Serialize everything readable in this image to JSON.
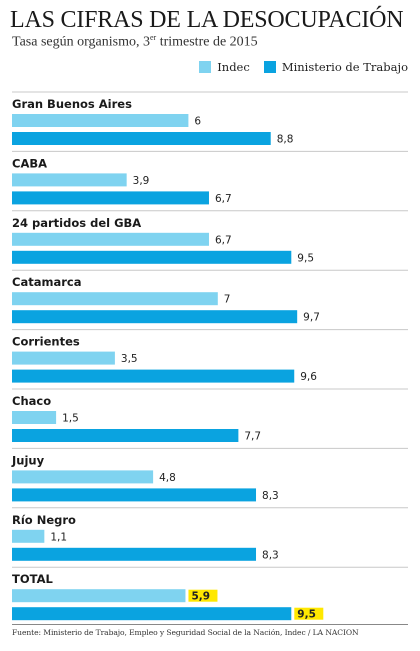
{
  "chart_data": {
    "type": "bar",
    "orientation": "horizontal",
    "title": "LAS CIFRAS DE LA DESOCUPACIÓN",
    "subtitle_main": "Tasa según organismo, 3",
    "subtitle_sup": "er",
    "subtitle_end": " trimestre de 2015",
    "categories": [
      "Gran Buenos Aires",
      "CABA",
      "24 partidos del GBA",
      "Catamarca",
      "Corrientes",
      "Chaco",
      "Jujuy",
      "Río Negro",
      "TOTAL"
    ],
    "series": [
      {
        "name": "Indec",
        "color": "#7fd3f0",
        "values": [
          6,
          3.9,
          6.7,
          7,
          3.5,
          1.5,
          4.8,
          1.1,
          5.9
        ],
        "labels": [
          "6",
          "3,9",
          "6,7",
          "7",
          "3,5",
          "1,5",
          "4,8",
          "1,1",
          "5,9"
        ]
      },
      {
        "name": "Ministerio de Trabajo",
        "color": "#0aa3e0",
        "values": [
          8.8,
          6.7,
          9.5,
          9.7,
          9.6,
          7.7,
          8.3,
          8.3,
          9.5
        ],
        "labels": [
          "8,8",
          "6,7",
          "9,5",
          "9,7",
          "9,6",
          "7,7",
          "8,3",
          "8,3",
          "9,5"
        ]
      }
    ],
    "highlight_category": "TOTAL",
    "highlight_color": "#ffe800",
    "legend_position": "top-right",
    "grid": false
  },
  "footer": "Fuente: Ministerio de Trabajo, Empleo y Seguridad Social de la Nación, Indec / LA NACION"
}
